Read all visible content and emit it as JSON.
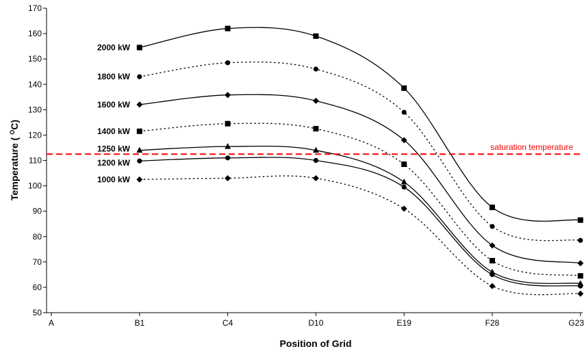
{
  "chart_data": {
    "type": "line",
    "title": "",
    "xlabel": "Position of Grid",
    "ylabel": "Temperature ( ",
    "ylabel_sup": "O",
    "ylabel_unit": "C)",
    "categories": [
      "A",
      "B1",
      "C4",
      "D10",
      "E19",
      "F28",
      "G23"
    ],
    "ylim": [
      50,
      170
    ],
    "yticks": [
      50,
      60,
      70,
      80,
      90,
      100,
      110,
      120,
      130,
      140,
      150,
      160,
      170
    ],
    "grid": false,
    "legend": "none",
    "series": [
      {
        "name": "2000 kW",
        "style": "solid",
        "marker": "square",
        "values": [
          null,
          154.5,
          162,
          159,
          138.5,
          91.5,
          86.5
        ]
      },
      {
        "name": "1800 kW",
        "style": "dotted",
        "marker": "circle",
        "values": [
          null,
          143,
          148.5,
          146,
          129,
          84,
          78.5
        ]
      },
      {
        "name": "1600 kW",
        "style": "solid",
        "marker": "diamond",
        "values": [
          null,
          132,
          135.8,
          133.5,
          118,
          76.5,
          69.5
        ]
      },
      {
        "name": "1400 kW",
        "style": "dotted",
        "marker": "square",
        "values": [
          null,
          121.5,
          124.5,
          122.5,
          108.5,
          70.5,
          64.5
        ]
      },
      {
        "name": "1250 kW",
        "style": "solid",
        "marker": "triangle",
        "values": [
          null,
          114,
          115.5,
          114,
          101.5,
          66,
          61.5
        ]
      },
      {
        "name": "1200 kW",
        "style": "solid",
        "marker": "circle",
        "values": [
          null,
          109.8,
          111,
          110,
          99.5,
          65,
          60.5
        ]
      },
      {
        "name": "1000 kW",
        "style": "dotted",
        "marker": "diamond",
        "values": [
          null,
          102.5,
          103,
          103,
          91,
          60.5,
          57.5
        ]
      }
    ],
    "saturation": {
      "label": "saturation temperature",
      "value": 112.5,
      "color": "#ff0000"
    }
  }
}
